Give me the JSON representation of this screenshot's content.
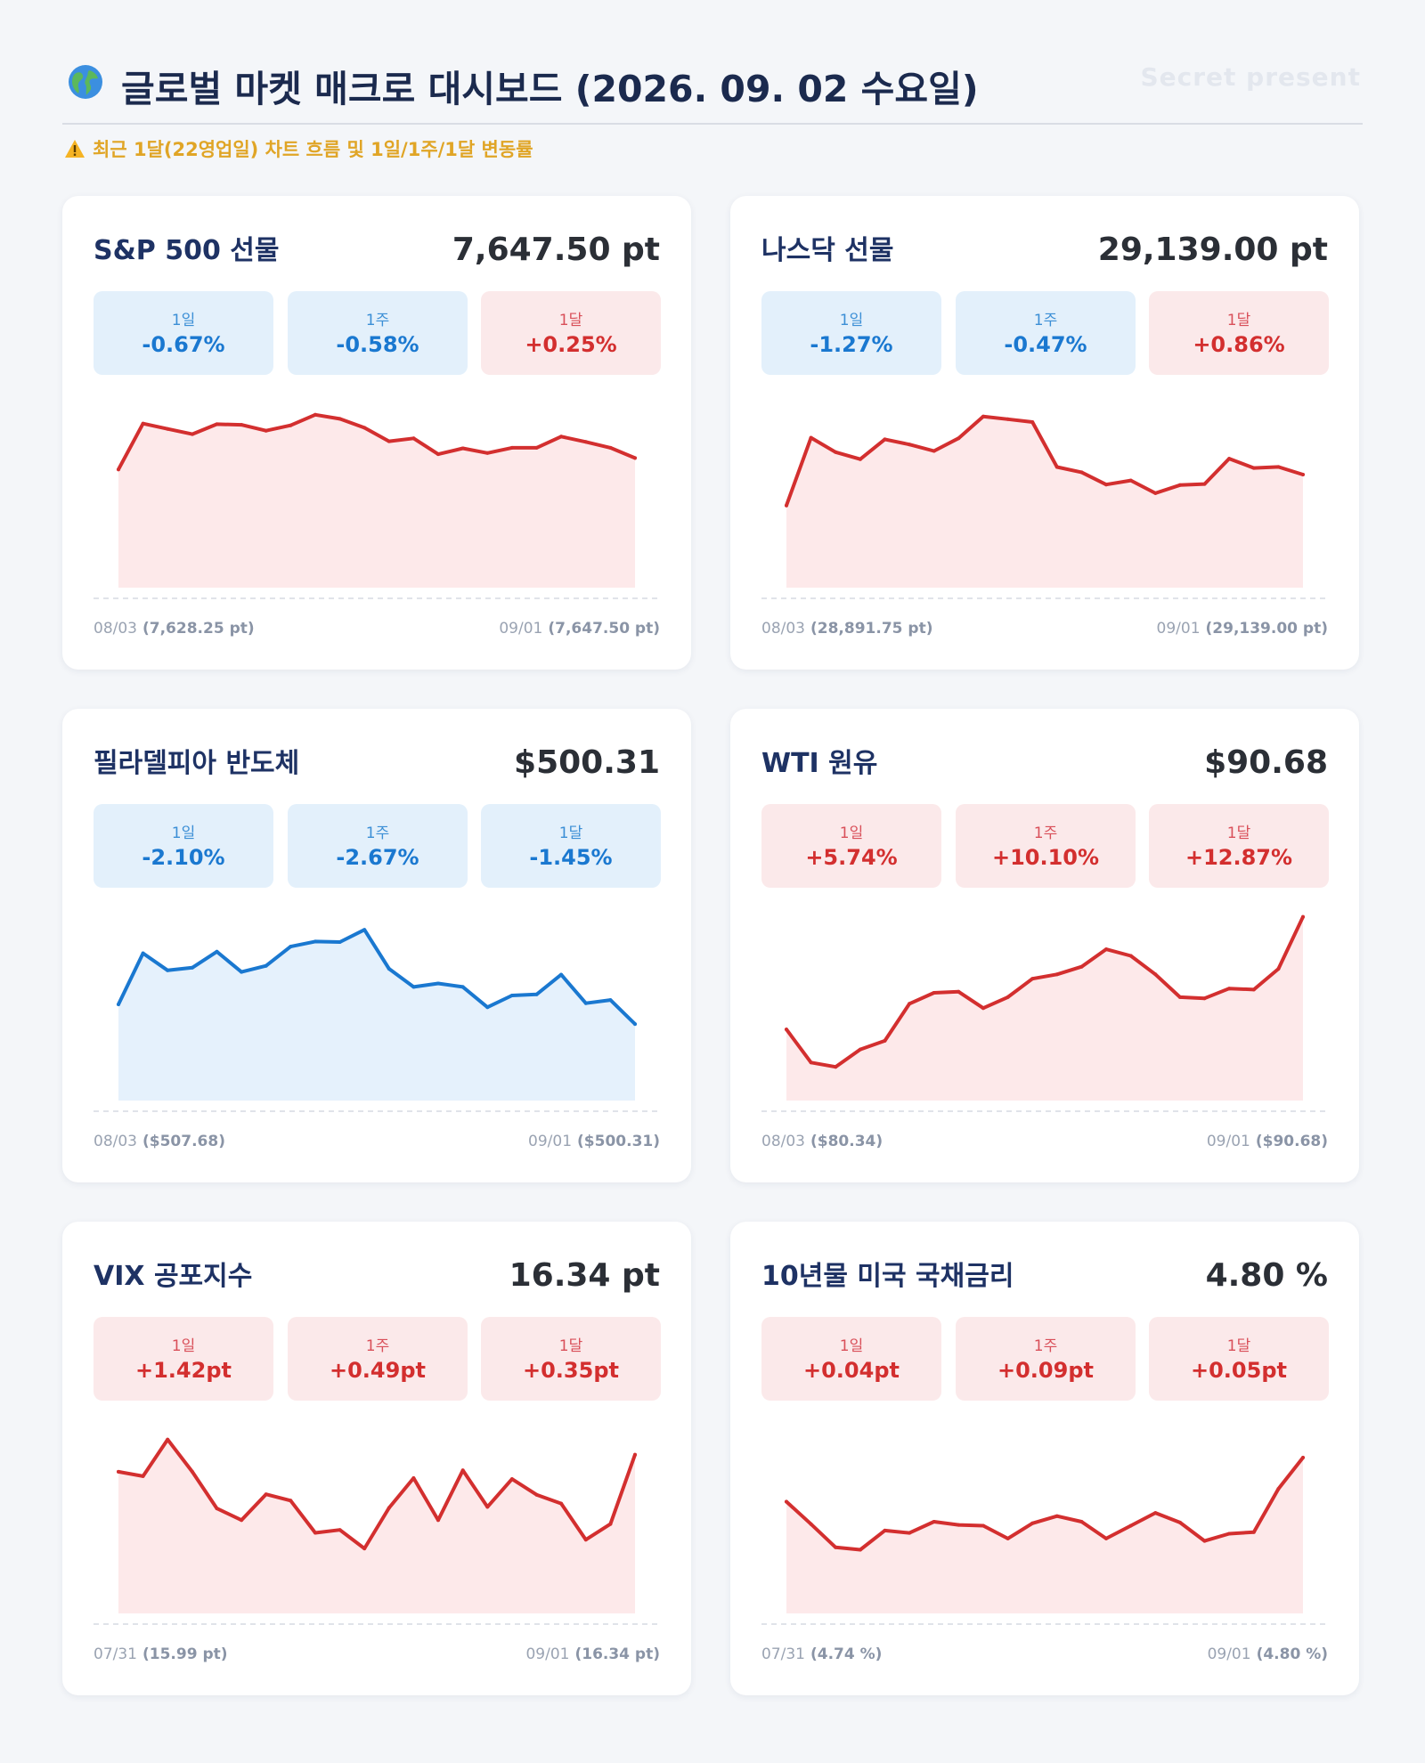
{
  "header": {
    "title": "글로벌 마켓 매크로 대시보드 (2026. 09. 02 수요일)",
    "watermark": "Secret present",
    "subtitle": "최근 1달(22영업일) 차트 흐름 및 1일/1주/1달 변동률"
  },
  "colors": {
    "up": "#d32f2f",
    "down": "#1a78d0",
    "up_fill": "#fde9ea",
    "down_fill": "#e5f1fc"
  },
  "chart_data": [
    {
      "type": "area",
      "name": "S&P 500 선물",
      "value": "7,647.50 pt",
      "trend": "up",
      "changes": [
        {
          "label": "1일",
          "value": "-0.67%",
          "dir": "down"
        },
        {
          "label": "1주",
          "value": "-0.58%",
          "dir": "down"
        },
        {
          "label": "1달",
          "value": "+0.25%",
          "dir": "up"
        }
      ],
      "start": {
        "date": "08/03",
        "value": "(7,628.25 pt)"
      },
      "end": {
        "date": "09/01",
        "value": "(7,647.50 pt)"
      },
      "ylim": [
        7420,
        7760
      ],
      "y": [
        7628.25,
        7706,
        7697,
        7688,
        7705,
        7704,
        7694,
        7703,
        7721,
        7714,
        7699,
        7676,
        7681,
        7654,
        7664,
        7656,
        7665,
        7665,
        7684,
        7675,
        7665,
        7647.5
      ]
    },
    {
      "type": "area",
      "name": "나스닥 선물",
      "value": "29,139.00 pt",
      "trend": "up",
      "changes": [
        {
          "label": "1일",
          "value": "-1.27%",
          "dir": "down"
        },
        {
          "label": "1주",
          "value": "-0.47%",
          "dir": "down"
        },
        {
          "label": "1달",
          "value": "+0.86%",
          "dir": "up"
        }
      ],
      "start": {
        "date": "08/03",
        "value": "(28,891.75 pt)"
      },
      "end": {
        "date": "09/01",
        "value": "(29,139.00 pt)"
      },
      "ylim": [
        28200,
        29800
      ],
      "y": [
        28891.75,
        29433,
        29318,
        29262,
        29420,
        29379,
        29327,
        29429,
        29603,
        29581,
        29558,
        29199,
        29157,
        29059,
        29092,
        28990,
        29055,
        29063,
        29266,
        29191,
        29200,
        29139
      ]
    },
    {
      "type": "area",
      "name": "필라델피아 반도체",
      "value": "$500.31",
      "trend": "down",
      "changes": [
        {
          "label": "1일",
          "value": "-2.10%",
          "dir": "down"
        },
        {
          "label": "1주",
          "value": "-2.67%",
          "dir": "down"
        },
        {
          "label": "1달",
          "value": "-1.45%",
          "dir": "down"
        }
      ],
      "start": {
        "date": "08/03",
        "value": "($507.68)"
      },
      "end": {
        "date": "09/01",
        "value": "($500.31)"
      },
      "ylim": [
        470,
        545
      ],
      "y": [
        507.68,
        526.8,
        520.4,
        521.4,
        527.4,
        519.8,
        522.1,
        529.3,
        531.2,
        531.0,
        535.6,
        521.0,
        514.2,
        515.5,
        514.2,
        506.6,
        511.0,
        511.4,
        518.8,
        508.1,
        509.3,
        500.31
      ]
    },
    {
      "type": "area",
      "name": "WTI 원유",
      "value": "$90.68",
      "trend": "up",
      "changes": [
        {
          "label": "1일",
          "value": "+5.74%",
          "dir": "up"
        },
        {
          "label": "1주",
          "value": "+10.10%",
          "dir": "up"
        },
        {
          "label": "1달",
          "value": "+12.87%",
          "dir": "up"
        }
      ],
      "start": {
        "date": "08/03",
        "value": "($80.34)"
      },
      "end": {
        "date": "09/01",
        "value": "($90.68)"
      },
      "ylim": [
        73.4,
        91.8
      ],
      "y": [
        80.34,
        77.3,
        76.9,
        78.5,
        79.3,
        82.7,
        83.7,
        83.8,
        82.3,
        83.3,
        85.0,
        85.4,
        86.1,
        87.7,
        87.1,
        85.4,
        83.3,
        83.2,
        84.1,
        84.0,
        85.9,
        90.68
      ]
    },
    {
      "type": "area",
      "name": "VIX 공포지수",
      "value": "16.34 pt",
      "trend": "up",
      "changes": [
        {
          "label": "1일",
          "value": "+1.42pt",
          "dir": "up"
        },
        {
          "label": "1주",
          "value": "+0.49pt",
          "dir": "up"
        },
        {
          "label": "1달",
          "value": "+0.35pt",
          "dir": "up"
        }
      ],
      "start": {
        "date": "07/31",
        "value": "(15.99 pt)"
      },
      "end": {
        "date": "09/01",
        "value": "(16.34 pt)"
      },
      "ylim": [
        13.0,
        17.1
      ],
      "y": [
        15.99,
        15.9,
        16.65,
        15.99,
        15.24,
        15.0,
        15.53,
        15.4,
        14.74,
        14.8,
        14.42,
        15.25,
        15.86,
        15.0,
        16.02,
        15.27,
        15.84,
        15.52,
        15.34,
        14.6,
        14.92,
        16.34
      ]
    },
    {
      "type": "area",
      "name": "10년물 미국 국채금리",
      "value": "4.80 %",
      "trend": "up",
      "changes": [
        {
          "label": "1일",
          "value": "+0.04pt",
          "dir": "up"
        },
        {
          "label": "1주",
          "value": "+0.09pt",
          "dir": "up"
        },
        {
          "label": "1달",
          "value": "+0.05pt",
          "dir": "up"
        }
      ],
      "start": {
        "date": "07/31",
        "value": "(4.74 %)"
      },
      "end": {
        "date": "09/01",
        "value": "(4.80 %)"
      },
      "ylim": [
        4.6,
        4.85
      ],
      "y": [
        4.745,
        4.717,
        4.688,
        4.685,
        4.709,
        4.706,
        4.72,
        4.716,
        4.715,
        4.699,
        4.718,
        4.727,
        4.72,
        4.699,
        4.715,
        4.731,
        4.719,
        4.696,
        4.705,
        4.707,
        4.761,
        4.8
      ]
    }
  ]
}
